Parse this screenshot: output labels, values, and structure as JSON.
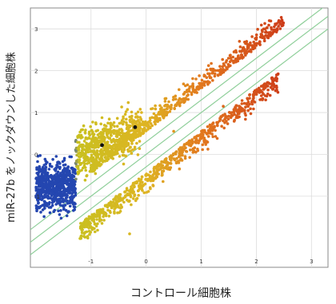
{
  "chart_data": {
    "type": "scatter",
    "title": "",
    "xlabel": "コントロール細胞株",
    "ylabel": "miR-27b をノックダウンした細胞株",
    "xlim": [
      -2.1,
      3.3
    ],
    "ylim": [
      -2.7,
      3.5
    ],
    "xticks": [
      "-1",
      "0",
      "1",
      "2",
      "3"
    ],
    "yticks": [
      "3",
      "2",
      "1",
      "0",
      "-1"
    ],
    "x_tick_values": [
      -1,
      0,
      1,
      2,
      3
    ],
    "y_tick_values": [
      3,
      2,
      1,
      0,
      -1
    ],
    "grid": true,
    "reference_lines": [
      {
        "slope": 1,
        "intercept": 0,
        "label": ""
      },
      {
        "slope": 1,
        "intercept": 0.3,
        "label": ""
      },
      {
        "slope": 1,
        "intercept": -0.3,
        "label": ""
      }
    ],
    "clusters": [
      {
        "name": "",
        "x_range": [
          -2.0,
          -1.3
        ],
        "y_center": -0.7,
        "color": "#1f3fae"
      },
      {
        "name": "",
        "x_range": [
          -1.3,
          -0.2
        ],
        "y_center": 0.1,
        "color": "#c9c020"
      },
      {
        "name": "",
        "diagonal_band_x": [
          -1.0,
          2.5
        ],
        "y_offset_center": 0.55,
        "color": "#e07e1a"
      },
      {
        "name": "",
        "diagonal_band_x": [
          -1.2,
          2.2
        ],
        "y_offset_center": -0.45,
        "color": "#d8541c"
      }
    ],
    "highlighted_points": [
      {
        "x": -0.8,
        "y": 0.22
      },
      {
        "x": -0.2,
        "y": 0.65
      }
    ]
  }
}
